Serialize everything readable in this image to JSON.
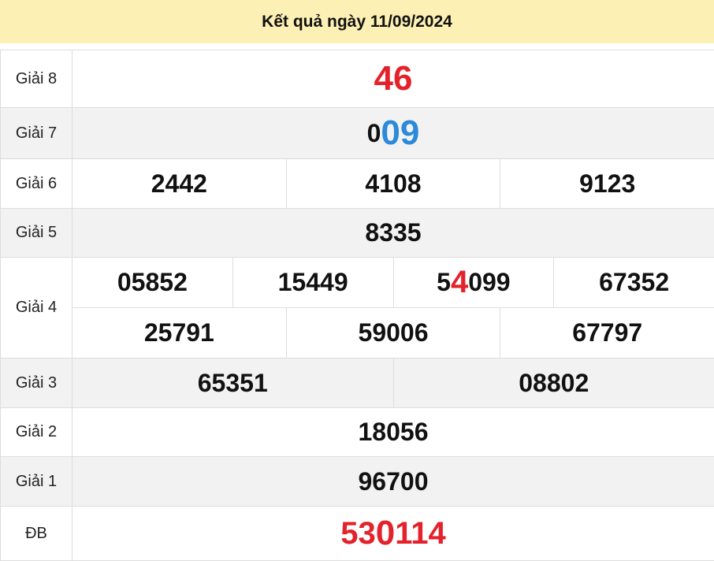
{
  "header": {
    "title": "Kết quả ngày 11/09/2024"
  },
  "colors": {
    "red": "#e3222b",
    "blue": "#2b8ad9",
    "header_bg": "#fdf0b4"
  },
  "prizes": [
    {
      "label": "Giải 8",
      "lines": [
        [
          [
            {
              "t": "46",
              "c": "red",
              "s": "big"
            }
          ]
        ]
      ]
    },
    {
      "label": "Giải 7",
      "lines": [
        [
          [
            {
              "t": "0",
              "c": "",
              "s": ""
            },
            {
              "t": "09",
              "c": "blue",
              "s": "big"
            }
          ]
        ]
      ]
    },
    {
      "label": "Giải 6",
      "lines": [
        [
          [
            {
              "t": "2442"
            }
          ],
          [
            {
              "t": "4108"
            }
          ],
          [
            {
              "t": "9123"
            }
          ]
        ]
      ]
    },
    {
      "label": "Giải 5",
      "lines": [
        [
          [
            {
              "t": "8335"
            }
          ]
        ]
      ]
    },
    {
      "label": "Giải 4",
      "lines": [
        [
          [
            {
              "t": "05852"
            }
          ],
          [
            {
              "t": "15449"
            }
          ],
          [
            {
              "t": "5"
            },
            {
              "t": "4",
              "c": "red",
              "s": "xl"
            },
            {
              "t": "099"
            }
          ],
          [
            {
              "t": "67352"
            }
          ]
        ],
        [
          [
            {
              "t": "25791"
            }
          ],
          [
            {
              "t": "59006"
            }
          ],
          [
            {
              "t": "67797"
            }
          ]
        ]
      ]
    },
    {
      "label": "Giải 3",
      "lines": [
        [
          [
            {
              "t": "65351"
            }
          ],
          [
            {
              "t": "08802"
            }
          ]
        ]
      ]
    },
    {
      "label": "Giải 2",
      "lines": [
        [
          [
            {
              "t": "18056"
            }
          ]
        ]
      ]
    },
    {
      "label": "Giải 1",
      "lines": [
        [
          [
            {
              "t": "96700"
            }
          ]
        ]
      ]
    },
    {
      "label": "ĐB",
      "lines": [
        [
          [
            {
              "t": "53",
              "c": "red",
              "s": "xl"
            },
            {
              "t": "0",
              "c": "red",
              "s": "big"
            },
            {
              "t": "114",
              "c": "red",
              "s": "xl"
            }
          ]
        ]
      ]
    }
  ]
}
